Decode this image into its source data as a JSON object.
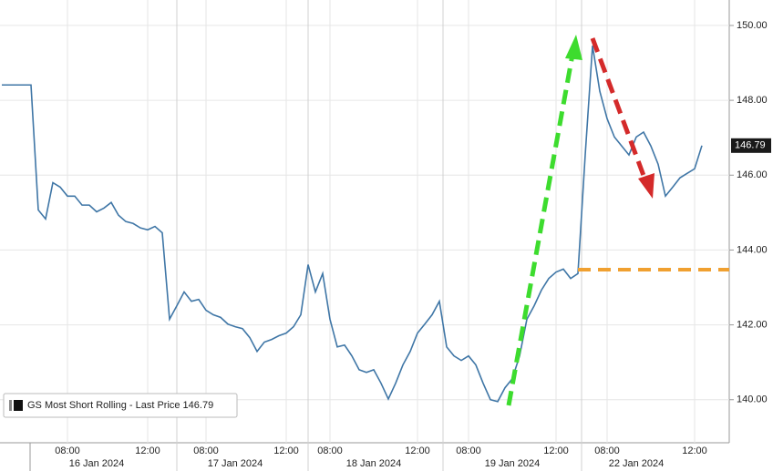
{
  "chart_data": {
    "type": "line",
    "categories": [
      null,
      null,
      null,
      null,
      null,
      null,
      null,
      null,
      null,
      "08:00",
      null,
      null,
      null,
      null,
      null,
      null,
      null,
      null,
      null,
      null,
      "12:00",
      null,
      null,
      null,
      null,
      null,
      null,
      null,
      "08:00",
      null,
      null,
      null,
      null,
      null,
      null,
      null,
      null,
      null,
      null,
      "12:00",
      null,
      null,
      null,
      null,
      null,
      "08:00",
      null,
      null,
      null,
      null,
      null,
      null,
      null,
      null,
      null,
      null,
      null,
      "12:00",
      null,
      null,
      null,
      null,
      null,
      null,
      "08:00",
      null,
      null,
      null,
      null,
      null,
      null,
      null,
      null,
      null,
      null,
      null,
      "12:00",
      null,
      null,
      null,
      null,
      null,
      null,
      "08:00",
      null,
      null,
      null,
      null,
      null,
      null,
      null,
      null,
      null,
      null,
      null,
      "12:00",
      null
    ],
    "dates": [
      null,
      null,
      null,
      null,
      null,
      null,
      null,
      null,
      null,
      null,
      null,
      null,
      null,
      "16 Jan 2024",
      null,
      null,
      null,
      null,
      null,
      null,
      null,
      null,
      null,
      null,
      null,
      null,
      null,
      null,
      null,
      null,
      null,
      null,
      "17 Jan 2024",
      null,
      null,
      null,
      null,
      null,
      null,
      null,
      null,
      null,
      null,
      null,
      null,
      null,
      null,
      null,
      null,
      null,
      null,
      "18 Jan 2024",
      null,
      null,
      null,
      null,
      null,
      null,
      null,
      null,
      null,
      null,
      null,
      null,
      null,
      null,
      null,
      null,
      null,
      null,
      "19 Jan 2024",
      null,
      null,
      null,
      null,
      null,
      null,
      null,
      null,
      null,
      null,
      null,
      null,
      null,
      null,
      null,
      null,
      "22 Jan 2024",
      null,
      null,
      null,
      null,
      null,
      null,
      null,
      null,
      null
    ],
    "series": [
      {
        "name": "GS Most Short Rolling - Last Price 146.79",
        "color": "#3f76a6",
        "values": [
          148.41,
          148.41,
          148.41,
          148.41,
          148.41,
          145.07,
          144.83,
          145.8,
          145.68,
          145.44,
          145.44,
          145.2,
          145.2,
          145.02,
          145.12,
          145.27,
          144.93,
          144.76,
          144.71,
          144.59,
          144.54,
          144.63,
          144.46,
          142.15,
          142.51,
          142.88,
          142.63,
          142.68,
          142.39,
          142.27,
          142.2,
          142.02,
          141.95,
          141.9,
          141.66,
          141.29,
          141.54,
          141.61,
          141.71,
          141.78,
          141.95,
          142.27,
          143.61,
          142.88,
          143.37,
          142.15,
          141.41,
          141.46,
          141.17,
          140.8,
          140.73,
          140.8,
          140.44,
          140.02,
          140.44,
          140.93,
          141.29,
          141.78,
          142.02,
          142.27,
          142.63,
          141.41,
          141.17,
          141.05,
          141.17,
          140.93,
          140.44,
          140.0,
          139.95,
          140.32,
          140.56,
          141.17,
          142.15,
          142.51,
          142.93,
          143.24,
          143.41,
          143.49,
          143.24,
          143.37,
          146.54,
          149.46,
          148.24,
          147.51,
          147.02,
          146.78,
          146.54,
          147.02,
          147.15,
          146.78,
          146.29,
          145.44,
          145.68,
          145.93,
          146.05,
          146.17,
          146.79
        ]
      }
    ],
    "ylim": [
      138.85,
      150.68
    ],
    "yticks": [
      {
        "value": 140,
        "label": "140.00"
      },
      {
        "value": 142,
        "label": "142.00"
      },
      {
        "value": 144,
        "label": "144.00"
      },
      {
        "value": 146,
        "label": "146.00"
      },
      {
        "value": 148,
        "label": "148.00"
      },
      {
        "value": 150,
        "label": "150.00"
      }
    ],
    "grid": true
  }
}
